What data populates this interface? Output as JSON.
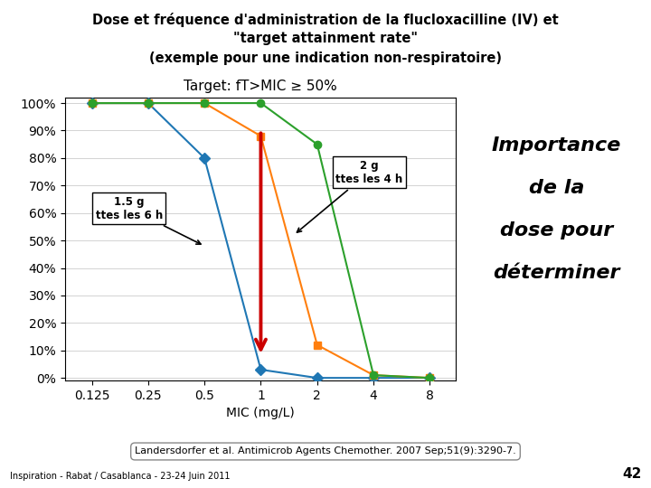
{
  "chart_data": {
    "type": "line",
    "heading": [
      "Dose et fréquence d'administration de la flucloxacilline (IV) et",
      "\"target attainment rate\"",
      "(exemple pour une indication non-respiratoire)"
    ],
    "title": "Target: fT>MIC ≥ 50%",
    "x_label": "MIC (mg/L)",
    "x": [
      0.125,
      0.25,
      0.5,
      1,
      2,
      4,
      8
    ],
    "series": [
      {
        "marker": "diamond",
        "values": [
          100,
          100,
          80,
          3,
          0,
          0,
          0
        ]
      },
      {
        "marker": "square",
        "values": [
          100,
          100,
          100,
          88,
          12,
          1,
          0
        ]
      },
      {
        "marker": "circle",
        "values": [
          100,
          100,
          100,
          100,
          85,
          1,
          0
        ]
      }
    ],
    "log": "x",
    "xlim": [
      0.09,
      11
    ],
    "xticks": [
      0.125,
      0.25,
      0.5,
      1,
      2,
      4,
      8
    ],
    "ylim": [
      -1,
      102
    ],
    "yticks": [
      {
        "value": 0,
        "label": "0%"
      },
      {
        "value": 10,
        "label": "10%"
      },
      {
        "value": 20,
        "label": "20%"
      },
      {
        "value": 30,
        "label": "30%"
      },
      {
        "value": 40,
        "label": "40%"
      },
      {
        "value": 50,
        "label": "50%"
      },
      {
        "value": 60,
        "label": "60%"
      },
      {
        "value": 70,
        "label": "70%"
      },
      {
        "value": 80,
        "label": "80%"
      },
      {
        "value": 90,
        "label": "90%"
      },
      {
        "value": 100,
        "label": "100%"
      }
    ],
    "grid": "y",
    "annotations": [
      {
        "text": "1.5 g\nttes les 6 h",
        "x": 0.5,
        "y": 48
      },
      {
        "text": "2 g\nttes les 4 h",
        "x": 1.5,
        "y": 52
      }
    ],
    "arrow": {
      "x": 1,
      "y": [
        90,
        8
      ],
      "color": "#cc0000"
    },
    "side_text": [
      "Importance",
      "de la",
      "dose pour",
      "déterminer"
    ],
    "source": "Landersdorfer et al. Antimicrob Agents Chemother. 2007 Sep;51(9):3290-7.",
    "footer": "Inspiration - Rabat / Casablanca - 23-24 Juin 2011",
    "page": "42"
  }
}
